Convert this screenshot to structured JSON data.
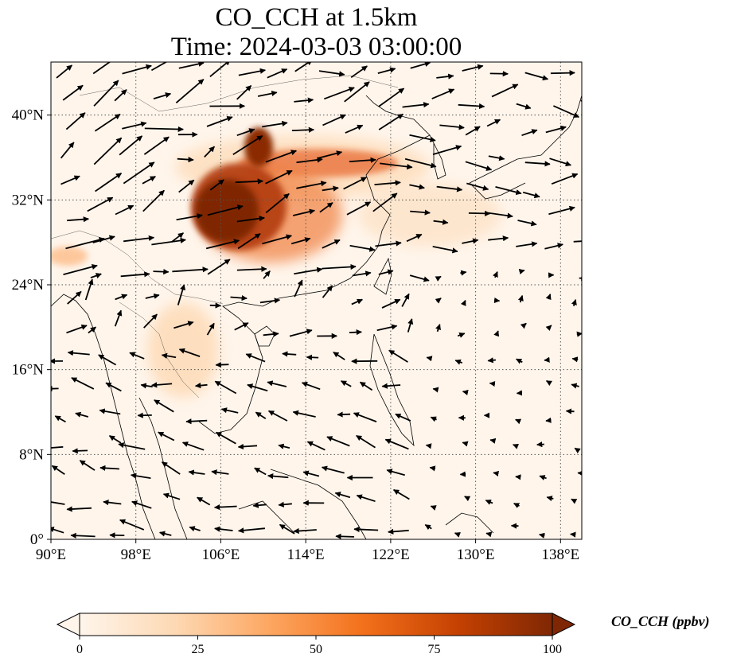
{
  "title": {
    "line1": "CO_CCH at 1.5km",
    "line2": "Time: 2024-03-03 03:00:00"
  },
  "map": {
    "lon_range": [
      90,
      140
    ],
    "lat_range": [
      0,
      45
    ],
    "x_ticks": [
      {
        "value": 90,
        "label": "90°E"
      },
      {
        "value": 98,
        "label": "98°E"
      },
      {
        "value": 106,
        "label": "106°E"
      },
      {
        "value": 114,
        "label": "114°E"
      },
      {
        "value": 122,
        "label": "122°E"
      },
      {
        "value": 130,
        "label": "130°E"
      },
      {
        "value": 138,
        "label": "138°E"
      }
    ],
    "y_ticks": [
      {
        "value": 0,
        "label": "0°"
      },
      {
        "value": 8,
        "label": "8°N"
      },
      {
        "value": 16,
        "label": "16°N"
      },
      {
        "value": 24,
        "label": "24°N"
      },
      {
        "value": 32,
        "label": "32°N"
      },
      {
        "value": 40,
        "label": "40°N"
      }
    ],
    "gridlines": true,
    "background_color": "#fff5eb"
  },
  "colorbar": {
    "title": "CO_CCH (ppbv)",
    "min": 0,
    "max": 100,
    "ticks": [
      {
        "value": 0,
        "label": "0"
      },
      {
        "value": 25,
        "label": "25"
      },
      {
        "value": 50,
        "label": "50"
      },
      {
        "value": 75,
        "label": "75"
      },
      {
        "value": 100,
        "label": "100"
      }
    ],
    "colors": [
      "#fff5eb",
      "#fdd9b4",
      "#fda762",
      "#f3701b",
      "#c54102",
      "#7f2704"
    ],
    "extend": "both"
  }
}
